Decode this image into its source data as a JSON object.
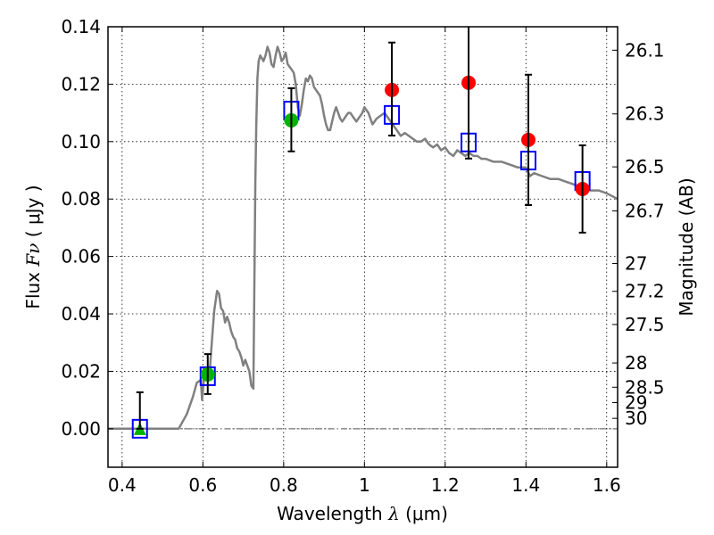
{
  "chart_data": {
    "type": "scatter",
    "title": "",
    "xlabel": "Wavelength  λ (μm)",
    "ylabel": "Flux  Fν  ( μJy )",
    "ylabel_right": "Magnitude (AB)",
    "xlim": [
      0.365,
      1.627
    ],
    "ylim": [
      -0.0134,
      0.14
    ],
    "grid": true,
    "x_ticks": [
      0.4,
      0.6,
      0.8,
      1.0,
      1.2,
      1.4,
      1.6
    ],
    "x_tick_labels": [
      "0.4",
      "0.6",
      "0.8",
      "1",
      "1.2",
      "1.4",
      "1.6"
    ],
    "y_ticks": [
      0.0,
      0.02,
      0.04,
      0.06,
      0.08,
      0.1,
      0.12,
      0.14
    ],
    "y_tick_labels": [
      "0.00",
      "0.02",
      "0.04",
      "0.06",
      "0.08",
      "0.10",
      "0.12",
      "0.14"
    ],
    "right_ticks_mag": [
      26.1,
      26.3,
      26.5,
      26.7,
      27,
      27.2,
      27.5,
      28,
      28.5,
      29,
      30
    ],
    "right_tick_labels": [
      "26.1",
      "26.3",
      "26.5",
      "26.7",
      "27",
      "27.2",
      "27.5",
      "28",
      "28.5",
      "29",
      "30"
    ],
    "zero_line": 0.0,
    "series": [
      {
        "name": "model spectrum",
        "kind": "line",
        "color": "#808080",
        "x": [
          0.365,
          0.54,
          0.56,
          0.575,
          0.585,
          0.595,
          0.598,
          0.603,
          0.607,
          0.612,
          0.617,
          0.622,
          0.628,
          0.635,
          0.64,
          0.645,
          0.65,
          0.655,
          0.66,
          0.665,
          0.67,
          0.675,
          0.68,
          0.685,
          0.69,
          0.695,
          0.7,
          0.705,
          0.71,
          0.715,
          0.72,
          0.725,
          0.73,
          0.732,
          0.735,
          0.738,
          0.742,
          0.746,
          0.75,
          0.755,
          0.76,
          0.765,
          0.77,
          0.775,
          0.78,
          0.785,
          0.79,
          0.795,
          0.8,
          0.805,
          0.81,
          0.815,
          0.82,
          0.825,
          0.83,
          0.835,
          0.84,
          0.845,
          0.85,
          0.855,
          0.86,
          0.865,
          0.87,
          0.875,
          0.88,
          0.885,
          0.89,
          0.895,
          0.9,
          0.905,
          0.91,
          0.915,
          0.92,
          0.925,
          0.93,
          0.935,
          0.94,
          0.945,
          0.95,
          0.955,
          0.96,
          0.965,
          0.97,
          0.975,
          0.98,
          0.985,
          0.99,
          0.995,
          1.0,
          1.01,
          1.02,
          1.03,
          1.04,
          1.05,
          1.06,
          1.07,
          1.08,
          1.09,
          1.1,
          1.11,
          1.12,
          1.13,
          1.14,
          1.15,
          1.16,
          1.17,
          1.18,
          1.19,
          1.2,
          1.21,
          1.22,
          1.23,
          1.24,
          1.25,
          1.26,
          1.27,
          1.28,
          1.29,
          1.3,
          1.32,
          1.34,
          1.36,
          1.38,
          1.4,
          1.41,
          1.42,
          1.44,
          1.46,
          1.48,
          1.5,
          1.52,
          1.54,
          1.56,
          1.58,
          1.6,
          1.627
        ],
        "y": [
          0.0,
          0.0,
          0.005,
          0.011,
          0.016,
          0.017,
          0.01,
          0.018,
          0.021,
          0.017,
          0.02,
          0.03,
          0.041,
          0.048,
          0.047,
          0.042,
          0.041,
          0.037,
          0.039,
          0.037,
          0.034,
          0.032,
          0.031,
          0.028,
          0.027,
          0.025,
          0.022,
          0.024,
          0.022,
          0.02,
          0.015,
          0.014,
          0.086,
          0.105,
          0.122,
          0.128,
          0.13,
          0.129,
          0.128,
          0.13,
          0.133,
          0.131,
          0.127,
          0.126,
          0.13,
          0.133,
          0.131,
          0.128,
          0.129,
          0.131,
          0.127,
          0.126,
          0.125,
          0.124,
          0.12,
          0.112,
          0.109,
          0.113,
          0.118,
          0.122,
          0.121,
          0.123,
          0.122,
          0.119,
          0.118,
          0.117,
          0.116,
          0.113,
          0.109,
          0.106,
          0.104,
          0.104,
          0.107,
          0.11,
          0.112,
          0.11,
          0.108,
          0.107,
          0.108,
          0.109,
          0.11,
          0.11,
          0.109,
          0.108,
          0.107,
          0.108,
          0.109,
          0.11,
          0.112,
          0.11,
          0.106,
          0.108,
          0.109,
          0.11,
          0.108,
          0.106,
          0.104,
          0.102,
          0.103,
          0.102,
          0.101,
          0.1,
          0.1,
          0.101,
          0.099,
          0.098,
          0.099,
          0.097,
          0.098,
          0.096,
          0.095,
          0.097,
          0.096,
          0.095,
          0.096,
          0.095,
          0.095,
          0.094,
          0.094,
          0.093,
          0.093,
          0.092,
          0.091,
          0.091,
          0.088,
          0.089,
          0.088,
          0.087,
          0.087,
          0.086,
          0.085,
          0.084,
          0.083,
          0.083,
          0.082,
          0.08
        ]
      },
      {
        "name": "model photometry",
        "kind": "open-square",
        "color": "#0000ff",
        "x": [
          0.444,
          0.612,
          0.819,
          1.068,
          1.258,
          1.406,
          1.54
        ],
        "y": [
          0.0,
          0.0183,
          0.1108,
          0.1093,
          0.0997,
          0.0934,
          0.0863
        ]
      },
      {
        "name": "observed (green)",
        "kind": "filled-circle",
        "color": "#00b400",
        "x": [
          0.612,
          0.819
        ],
        "y": [
          0.0189,
          0.1074
        ]
      },
      {
        "name": "observed upper limit",
        "kind": "filled-triangle",
        "color": "#00b400",
        "x": [
          0.444
        ],
        "y": [
          0.0
        ]
      },
      {
        "name": "observed (red)",
        "kind": "filled-circle",
        "color": "#ff0000",
        "x": [
          1.068,
          1.258,
          1.406,
          1.54
        ],
        "y": [
          0.118,
          0.1205,
          0.1006,
          0.0835
        ]
      }
    ],
    "errorbars": [
      {
        "x": 0.444,
        "low": 0.0,
        "high": 0.0127
      },
      {
        "x": 0.612,
        "low": 0.0121,
        "high": 0.026
      },
      {
        "x": 0.819,
        "low": 0.0966,
        "high": 0.1186
      },
      {
        "x": 1.068,
        "low": 0.1021,
        "high": 0.1345
      },
      {
        "x": 1.258,
        "low": 0.0941,
        "high": 0.147
      },
      {
        "x": 1.406,
        "low": 0.0779,
        "high": 0.1233
      },
      {
        "x": 1.54,
        "low": 0.0683,
        "high": 0.0987
      }
    ]
  }
}
